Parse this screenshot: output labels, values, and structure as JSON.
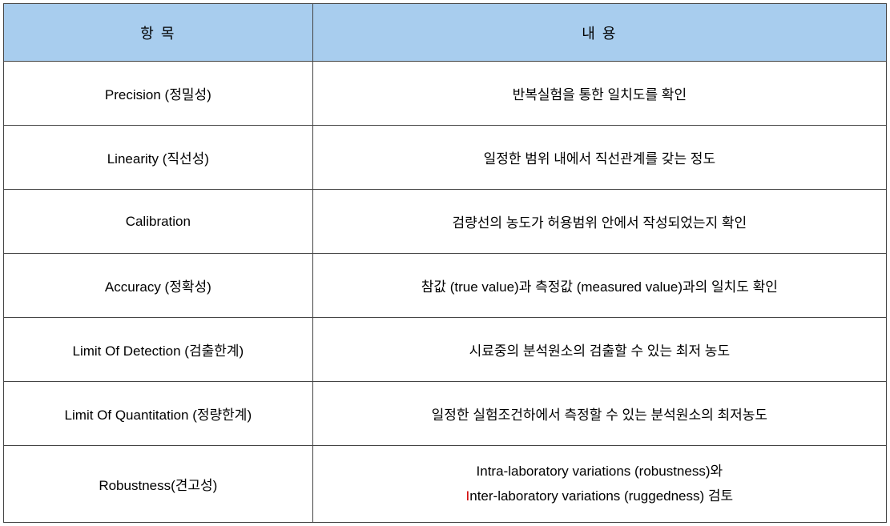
{
  "table": {
    "header_bg": "#a8cdee",
    "border_color": "#444444",
    "col_widths": [
      "35%",
      "65%"
    ],
    "header_fontsize": 18,
    "cell_fontsize": 17,
    "header_row_height": 72,
    "body_row_height": 80,
    "last_row_height": 96,
    "columns": [
      {
        "label": "항 목"
      },
      {
        "label": "내 용"
      }
    ],
    "rows": [
      {
        "item": "Precision (정밀성)",
        "content": "반복실험을 통한 일치도를 확인"
      },
      {
        "item": "Linearity (직선성)",
        "content": "일정한 범위 내에서 직선관계를 갖는 정도"
      },
      {
        "item": "Calibration",
        "content": "검량선의 농도가 허용범위 안에서 작성되었는지 확인"
      },
      {
        "item": "Accuracy (정확성)",
        "content": "참값 (true value)과 측정값 (measured value)과의 일치도 확인"
      },
      {
        "item": "Limit Of Detection (검출한계)",
        "content": "시료중의 분석원소의 검출할 수 있는 최저 농도"
      },
      {
        "item": "Limit Of Quantitation (정량한계)",
        "content": "일정한 실험조건하에서 측정할 수 있는 분석원소의 최저농도"
      },
      {
        "item": "Robustness(견고성)",
        "content_line1_prefix": "Intra-laboratory variations (robustness)와",
        "content_line2_highlight": "I",
        "content_line2_rest": "nter-laboratory variations (ruggedness) 검토"
      }
    ]
  }
}
